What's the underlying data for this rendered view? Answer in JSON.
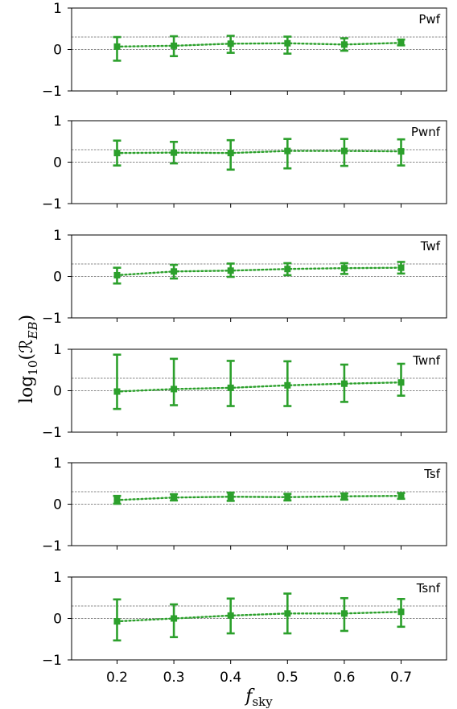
{
  "chart_data": {
    "type": "line",
    "x": [
      0.2,
      0.3,
      0.4,
      0.5,
      0.6,
      0.7
    ],
    "xticks": [
      "0.2",
      "0.3",
      "0.4",
      "0.5",
      "0.6",
      "0.7"
    ],
    "xlim": [
      0.12,
      0.78
    ],
    "ylim": [
      -1,
      1
    ],
    "yticks": [
      "1",
      "0",
      "−1"
    ],
    "reference_lines": [
      0,
      0.301
    ],
    "xlabel": {
      "main": "f",
      "sub": "sky"
    },
    "ylabel": {
      "main": "log",
      "sub": "10",
      "arg": "(ℛ",
      "argsub": "EB",
      "close": ")"
    },
    "series_color": "#2ca02c",
    "reference_line_color": "#888888",
    "line_style": "dotted",
    "marker": "square",
    "grid": false,
    "panels": [
      {
        "name": "Pwf",
        "values": [
          0.07,
          0.09,
          0.14,
          0.15,
          0.12,
          0.16
        ],
        "lower": [
          -0.27,
          -0.16,
          -0.08,
          -0.1,
          -0.03,
          0.1
        ],
        "upper": [
          0.3,
          0.32,
          0.33,
          0.31,
          0.27,
          0.24
        ]
      },
      {
        "name": "Pwnf",
        "values": [
          0.22,
          0.23,
          0.22,
          0.27,
          0.27,
          0.26
        ],
        "lower": [
          -0.08,
          -0.03,
          -0.18,
          -0.15,
          -0.09,
          -0.08
        ],
        "upper": [
          0.52,
          0.49,
          0.53,
          0.56,
          0.56,
          0.55
        ]
      },
      {
        "name": "Twf",
        "values": [
          0.03,
          0.12,
          0.14,
          0.18,
          0.2,
          0.21
        ],
        "lower": [
          -0.17,
          -0.05,
          -0.01,
          0.03,
          0.06,
          0.07
        ],
        "upper": [
          0.21,
          0.28,
          0.31,
          0.32,
          0.32,
          0.35
        ]
      },
      {
        "name": "Twnf",
        "values": [
          -0.02,
          0.04,
          0.07,
          0.13,
          0.17,
          0.2
        ],
        "lower": [
          -0.44,
          -0.35,
          -0.37,
          -0.37,
          -0.27,
          -0.12
        ],
        "upper": [
          0.87,
          0.77,
          0.72,
          0.71,
          0.63,
          0.65
        ]
      },
      {
        "name": "Tsf",
        "values": [
          0.1,
          0.16,
          0.18,
          0.17,
          0.19,
          0.2
        ],
        "lower": [
          0.01,
          0.09,
          0.08,
          0.09,
          0.11,
          0.13
        ],
        "upper": [
          0.2,
          0.24,
          0.28,
          0.25,
          0.26,
          0.27
        ]
      },
      {
        "name": "Tsnf",
        "values": [
          -0.07,
          0.0,
          0.07,
          0.12,
          0.12,
          0.16
        ],
        "lower": [
          -0.53,
          -0.45,
          -0.36,
          -0.36,
          -0.3,
          -0.2
        ],
        "upper": [
          0.46,
          0.34,
          0.48,
          0.6,
          0.49,
          0.47
        ]
      }
    ]
  }
}
